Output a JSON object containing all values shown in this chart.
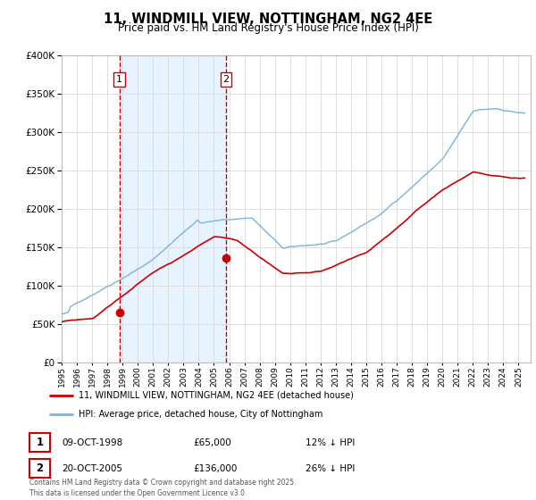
{
  "title": "11, WINDMILL VIEW, NOTTINGHAM, NG2 4EE",
  "subtitle": "Price paid vs. HM Land Registry's House Price Index (HPI)",
  "ylim": [
    0,
    400000
  ],
  "yticks": [
    0,
    50000,
    100000,
    150000,
    200000,
    250000,
    300000,
    350000,
    400000
  ],
  "hpi_color": "#7ab4d8",
  "price_color": "#cc0000",
  "vline_color": "#cc0000",
  "shade_color": "#ddeeff",
  "background_color": "#ffffff",
  "grid_color": "#dddddd",
  "legend_label_price": "11, WINDMILL VIEW, NOTTINGHAM, NG2 4EE (detached house)",
  "legend_label_hpi": "HPI: Average price, detached house, City of Nottingham",
  "annotation1_date": "09-OCT-1998",
  "annotation1_price": "£65,000",
  "annotation1_hpi": "12% ↓ HPI",
  "annotation2_date": "20-OCT-2005",
  "annotation2_price": "£136,000",
  "annotation2_hpi": "26% ↓ HPI",
  "footer": "Contains HM Land Registry data © Crown copyright and database right 2025.\nThis data is licensed under the Open Government Licence v3.0.",
  "sale1_year": 1998.79,
  "sale1_price": 65000,
  "sale2_year": 2005.79,
  "sale2_price": 136000
}
